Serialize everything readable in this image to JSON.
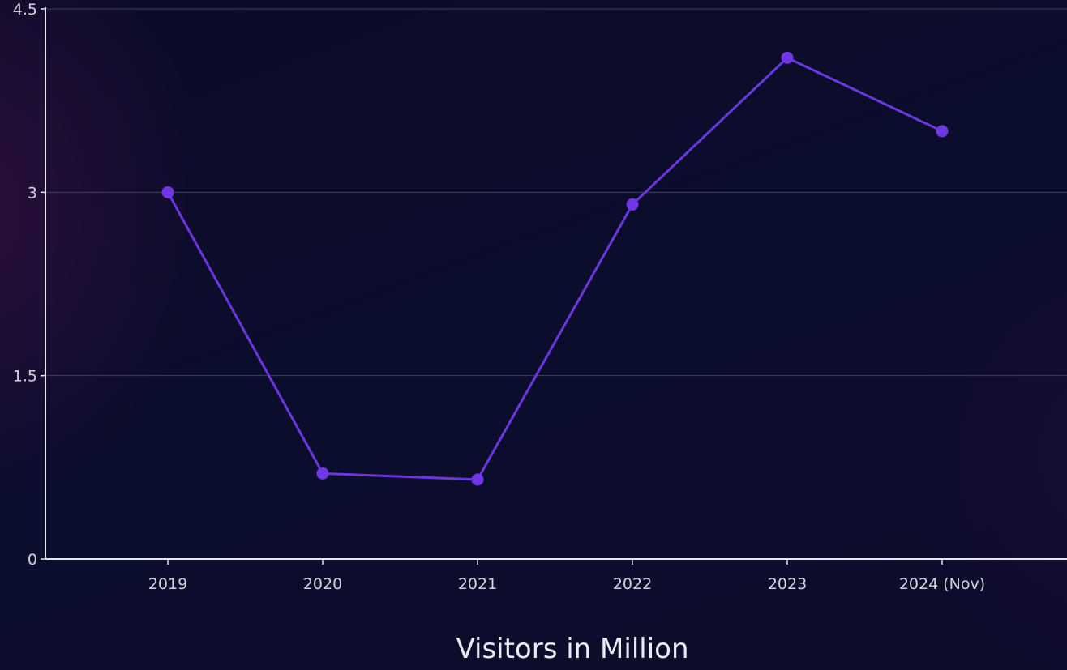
{
  "chart_data": {
    "type": "line",
    "title": "Visitors in Million",
    "categories": [
      "2019",
      "2020",
      "2021",
      "2022",
      "2023",
      "2024 (Nov)"
    ],
    "series": [
      {
        "values": [
          3.0,
          0.7,
          0.65,
          2.9,
          4.1,
          3.5
        ]
      }
    ],
    "ylim": [
      0,
      4.5
    ],
    "yticks": [
      "0",
      "1.5",
      "3",
      "4.5"
    ],
    "grid": true,
    "line_color": "#6c36de",
    "point_color": "#7038e4",
    "background": "#0c0c26"
  }
}
